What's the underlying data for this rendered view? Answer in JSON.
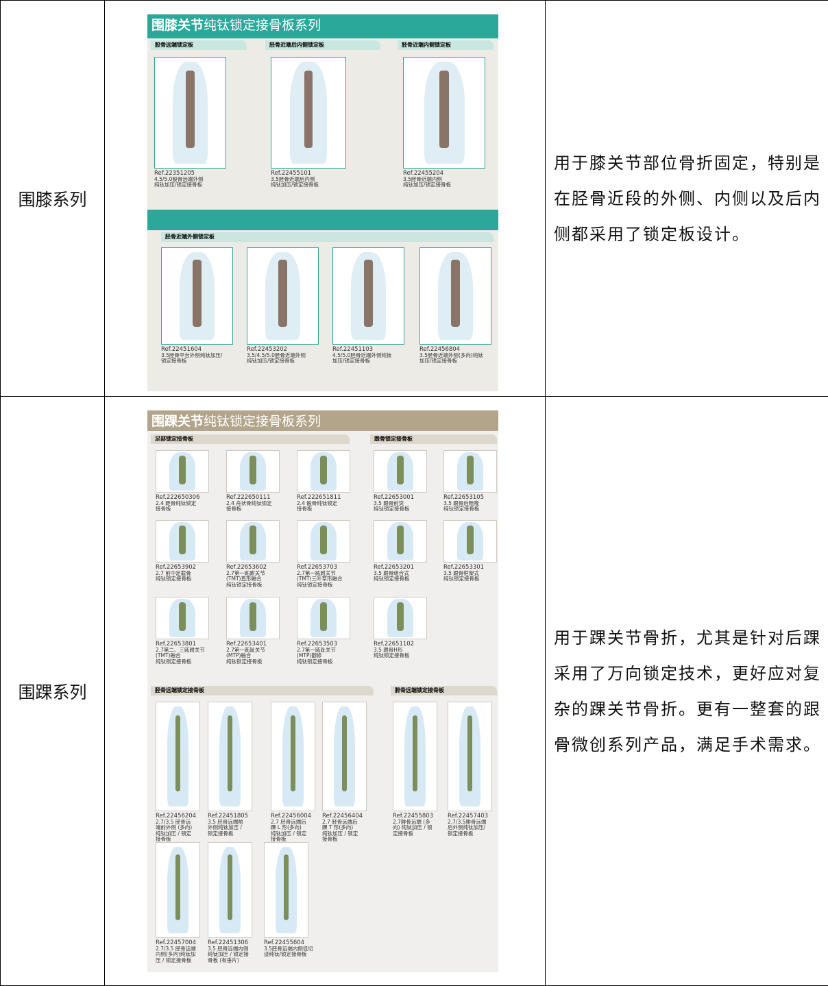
{
  "table": {
    "rows": [
      {
        "label": "围膝系列",
        "catalog": {
          "title_bold": "围膝关节",
          "title_light": "纯钛锁定接骨板系列",
          "sections": [
            {
              "title": "股骨远端锁定板",
              "items": [
                {
                  "ref": "Ref.22351205",
                  "desc": [
                    "4.5/5.0股骨远端外侧",
                    "纯钛加压/锁定接骨板"
                  ]
                }
              ]
            },
            {
              "title": "胫骨近端后内侧锁定板",
              "items": [
                {
                  "ref": "Ref.22455101",
                  "desc": [
                    "3.5胫骨近端后内侧",
                    "纯钛加压/锁定接骨板"
                  ]
                }
              ]
            },
            {
              "title": "胫骨近端内侧锁定板",
              "items": [
                {
                  "ref": "Ref.22455204",
                  "desc": [
                    "3.5胫骨近端内侧",
                    "纯钛加压/锁定接骨板"
                  ]
                }
              ]
            },
            {
              "title": "胫骨近端外侧锁定板",
              "items": [
                {
                  "ref": "Ref.22451604",
                  "desc": [
                    "3.5胫骨平台外侧纯钛加压/",
                    "锁定接骨板"
                  ]
                },
                {
                  "ref": "Ref.22453202",
                  "desc": [
                    "3.5/4.5/5.0胫骨近端外侧",
                    "纯钛加压/锁定接骨板"
                  ]
                },
                {
                  "ref": "Ref.22451103",
                  "desc": [
                    "4.5/5.0胫骨近端外侧纯钛",
                    "加压/锁定接骨板"
                  ]
                },
                {
                  "ref": "Ref.22456804",
                  "desc": [
                    "3.5胫骨近端外侧(多向)纯钛",
                    "加压/锁定接骨板"
                  ]
                }
              ]
            }
          ]
        },
        "description": "用于膝关节部位骨折固定，特别是在胫骨近段的外侧、内侧以及后内侧都采用了锁定板设计。"
      },
      {
        "label": "围踝系列",
        "catalog": {
          "title_bold": "围踝关节",
          "title_light": "纯钛锁定接骨板系列",
          "sections": [
            {
              "title": "足部锁定接骨板",
              "items": [
                {
                  "ref": "Ref.222650306",
                  "desc": [
                    "2.4 距骨纯钛锁定",
                    "接骨板"
                  ]
                },
                {
                  "ref": "Ref.222650111",
                  "desc": [
                    "2.4 舟状骨纯钛锁定",
                    "接骨板"
                  ]
                },
                {
                  "ref": "Ref.222651811",
                  "desc": [
                    "2.4 骰骨纯钛锁定",
                    "接骨板"
                  ]
                },
                {
                  "ref": "Ref.22653902",
                  "desc": [
                    "2.7 前中足截骨",
                    "纯钛锁定接骨板"
                  ]
                },
                {
                  "ref": "Ref.22653602",
                  "desc": [
                    "2.7第一跖跗关节",
                    "(TMT)直形融合",
                    "纯钛锁定接骨板"
                  ]
                },
                {
                  "ref": "Ref.22653703",
                  "desc": [
                    "2.7第一跖跗关节",
                    "(TMT)三叶草形融合",
                    "纯钛锁定接骨板"
                  ]
                },
                {
                  "ref": "Ref.22653801",
                  "desc": [
                    "2.7第二、三跖跗关节",
                    "(TMT)融合",
                    "纯钛锁定接骨板"
                  ]
                },
                {
                  "ref": "Ref.22653401",
                  "desc": [
                    "2.7第一跖趾关节",
                    "(MTP)融合",
                    "纯钛锁定接骨板"
                  ]
                },
                {
                  "ref": "Ref.22653503",
                  "desc": [
                    "2.7第一跖趾关节",
                    "(MTP)翻修",
                    "纯钛锁定接骨板"
                  ]
                }
              ]
            },
            {
              "title": "跟骨锁定接骨板",
              "items": [
                {
                  "ref": "Ref.22653001",
                  "desc": [
                    "3.5 跟骨前突",
                    "纯钛锁定接骨板"
                  ]
                },
                {
                  "ref": "Ref.22653105",
                  "desc": [
                    "3.5 跟骨后粗隆",
                    "纯钛锁定接骨板"
                  ]
                },
                {
                  "ref": "Ref.22653201",
                  "desc": [
                    "3.5 跟骨组合式",
                    "纯钛锁定接骨板"
                  ]
                },
                {
                  "ref": "Ref.22653301",
                  "desc": [
                    "3.5 跟骨框架式",
                    "纯钛锁定接骨板"
                  ]
                },
                {
                  "ref": "Ref.22651102",
                  "desc": [
                    "3.5 跟骨H形",
                    "纯钛锁定接骨板"
                  ]
                }
              ]
            },
            {
              "title": "胫骨远端锁定接骨板",
              "items": [
                {
                  "ref": "Ref.22456204",
                  "desc": [
                    "2.7/3.5 胫骨远",
                    "端前外侧 (多向)",
                    "纯钛加压 / 锁定",
                    "接骨板"
                  ]
                },
                {
                  "ref": "Ref.22451805",
                  "desc": [
                    "3.5 胫骨远端前",
                    "外侧纯钛加压 /",
                    "锁定接骨板"
                  ]
                },
                {
                  "ref": "Ref.22456004",
                  "desc": [
                    "2.7 胫骨远端后",
                    "踝 L 形(多向)",
                    "纯钛加压 / 锁定",
                    "接骨板"
                  ]
                },
                {
                  "ref": "Ref.22456404",
                  "desc": [
                    "2.7 胫骨远端后",
                    "踝 T 形(多向)",
                    "纯钛加压 / 锁定",
                    "接骨板"
                  ]
                },
                {
                  "ref": "Ref.22457004",
                  "desc": [
                    "2.7/3.5 胫骨远端",
                    "内侧(多向)纯钛加",
                    "压 / 锁定接骨板"
                  ]
                },
                {
                  "ref": "Ref.22451306",
                  "desc": [
                    "3.5 胫骨远端内侧",
                    "纯钛加压 / 锁定接",
                    "骨板 (有垂片)"
                  ]
                },
                {
                  "ref": "Ref.22455604",
                  "desc": [
                    "3.5胫骨远端内侧低切",
                    "迹纯钛/锁定接骨板"
                  ]
                }
              ]
            },
            {
              "title": "腓骨远端锁定接骨板",
              "items": [
                {
                  "ref": "Ref.22455803",
                  "desc": [
                    "2.7腓骨远端 (多",
                    "向) 纯钛加压 / 锁",
                    "定接骨板"
                  ]
                },
                {
                  "ref": "Ref.22457403",
                  "desc": [
                    "2.7/3.5腓骨远端",
                    "后外侧纯钛加压/",
                    "锁定接骨板"
                  ]
                }
              ]
            }
          ]
        },
        "description": "用于踝关节骨折，尤其是针对后踝采用了万向锁定技术，更好应对复杂的踝关节骨折。更有一整套的跟骨微创系列产品，满足手术需求。"
      }
    ]
  }
}
